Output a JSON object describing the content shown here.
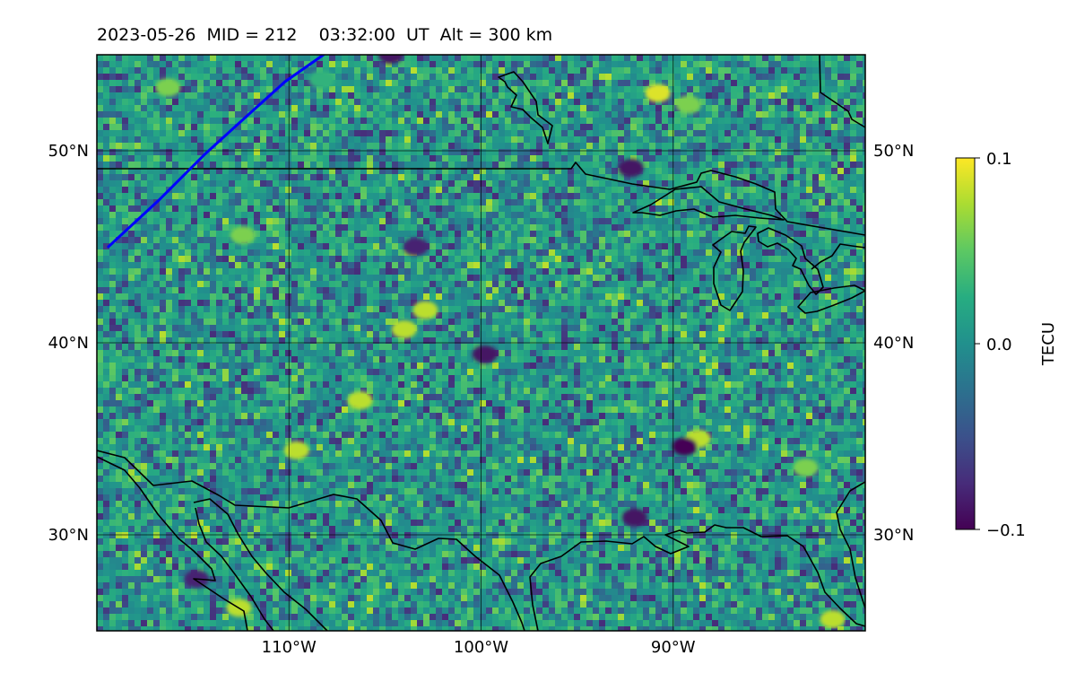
{
  "title": {
    "date": "2023-05-26",
    "mid": "MID = 212",
    "time": "03:32:00  UT",
    "alt": "Alt = 300 km"
  },
  "map": {
    "extent": {
      "lon_min": -120,
      "lon_max": -80,
      "lat_min": 25,
      "lat_max": 55
    },
    "lat_ticks": [
      {
        "lat": 50,
        "label": "50°N"
      },
      {
        "lat": 40,
        "label": "40°N"
      },
      {
        "lat": 30,
        "label": "30°N"
      }
    ],
    "lon_ticks": [
      {
        "lon": -110,
        "label": "110°W"
      },
      {
        "lon": -100,
        "label": "100°W"
      },
      {
        "lon": -90,
        "label": "90°W"
      }
    ],
    "grid": true,
    "coastline_color": "#000000",
    "track_color": "#0000ff",
    "track": [
      [
        -119.4,
        45.0
      ],
      [
        -116.8,
        47.4
      ],
      [
        -114.4,
        49.8
      ],
      [
        -112.2,
        51.8
      ],
      [
        -110.2,
        53.6
      ],
      [
        -108.2,
        55.0
      ]
    ]
  },
  "colorbar": {
    "label": "TECU",
    "min": -0.1,
    "max": 0.1,
    "ticks": [
      {
        "value": 0.1,
        "label": "0.1"
      },
      {
        "value": 0.0,
        "label": "0.0"
      },
      {
        "value": -0.1,
        "label": "−0.1"
      }
    ],
    "colormap": [
      "#440154",
      "#472c7a",
      "#3b518b",
      "#2c718e",
      "#21908d",
      "#27ad81",
      "#5cc863",
      "#aadc32",
      "#fde725"
    ]
  },
  "chart_data": {
    "type": "heatmap",
    "xlabel": "",
    "ylabel": "",
    "x_range": [
      -120,
      -80
    ],
    "y_range": [
      25,
      55
    ],
    "value_range": [
      -0.1,
      0.1
    ],
    "features": [
      {
        "lon": -116.3,
        "lat": 53.3,
        "value": 0.06
      },
      {
        "lon": -108.3,
        "lat": 53.7,
        "value": 0.03
      },
      {
        "lon": -90.8,
        "lat": 53.0,
        "value": 0.09
      },
      {
        "lon": -89.2,
        "lat": 52.4,
        "value": 0.06
      },
      {
        "lon": -104.7,
        "lat": 55.0,
        "value": -0.09
      },
      {
        "lon": -92.2,
        "lat": 49.1,
        "value": -0.09
      },
      {
        "lon": -112.4,
        "lat": 45.6,
        "value": 0.06
      },
      {
        "lon": -102.9,
        "lat": 41.7,
        "value": 0.08
      },
      {
        "lon": -106.3,
        "lat": 37.0,
        "value": 0.08
      },
      {
        "lon": -99.8,
        "lat": 39.4,
        "value": -0.09
      },
      {
        "lon": -88.7,
        "lat": 35.0,
        "value": 0.08
      },
      {
        "lon": -89.4,
        "lat": 34.6,
        "value": -0.1
      },
      {
        "lon": -92.0,
        "lat": 30.9,
        "value": -0.09
      },
      {
        "lon": -114.8,
        "lat": 27.7,
        "value": -0.08
      },
      {
        "lon": -112.6,
        "lat": 26.2,
        "value": 0.08
      },
      {
        "lon": -81.7,
        "lat": 25.6,
        "value": 0.08
      },
      {
        "lon": -83.1,
        "lat": 33.5,
        "value": 0.06
      },
      {
        "lon": -109.6,
        "lat": 34.4,
        "value": 0.08
      },
      {
        "lon": -104.0,
        "lat": 40.7,
        "value": 0.08
      },
      {
        "lon": -103.4,
        "lat": 45.0,
        "value": -0.08
      }
    ]
  }
}
